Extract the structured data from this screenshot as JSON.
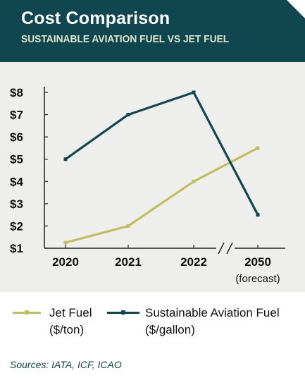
{
  "header": {
    "title": "Cost Comparison",
    "subtitle": "SUSTAINABLE AVIATION FUEL VS JET FUEL"
  },
  "chart_data": {
    "type": "line",
    "categories": [
      "2020",
      "2021",
      "2022",
      "2050"
    ],
    "category_sublabels": [
      "",
      "",
      "",
      "(forecast)"
    ],
    "axis_break_before": "2050",
    "ylim": [
      1,
      8
    ],
    "yticks": [
      "$1",
      "$2",
      "$3",
      "$4",
      "$5",
      "$6",
      "$7",
      "$8"
    ],
    "grid": false,
    "series": [
      {
        "name": "Jet Fuel",
        "unit": "($/ton)",
        "color": "#c2bd5e",
        "values": [
          1.25,
          2.0,
          4.0,
          5.5
        ]
      },
      {
        "name": "Sustainable Aviation Fuel",
        "unit": "($/gallon)",
        "color": "#0f4650",
        "values": [
          5.0,
          7.0,
          8.0,
          2.5
        ]
      }
    ]
  },
  "legend": {
    "position": "bottom",
    "items": [
      {
        "label": "Jet Fuel",
        "sublabel": "($/ton)"
      },
      {
        "label": "Sustainable Aviation Fuel",
        "sublabel": "($/gallon)"
      }
    ]
  },
  "footer": {
    "sources": "Sources: IATA, ICF, ICAO"
  },
  "colors": {
    "header_bg": "#0f4650",
    "plot_bg": "#eeeeec",
    "jet_fuel": "#c2bd5e",
    "saf": "#0f4650"
  }
}
